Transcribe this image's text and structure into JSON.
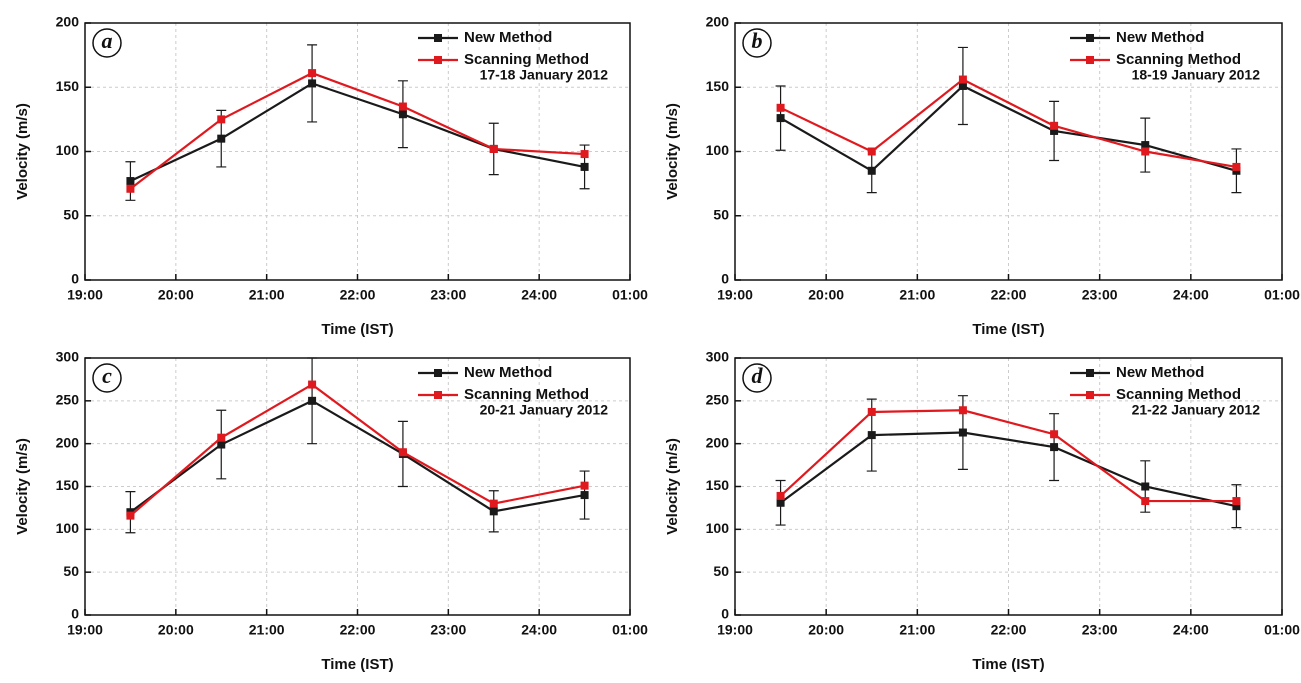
{
  "chart_data": [
    {
      "type": "line",
      "panel": "a",
      "annotation": "17-18 January 2012",
      "x_label": "Time (IST)",
      "y_label": "Velocity (m/s)",
      "x": [
        19.5,
        20.5,
        21.5,
        22.5,
        23.5,
        24.5
      ],
      "series": [
        {
          "name": "New Method",
          "color": "#1a1a1a",
          "values": [
            77,
            110,
            153,
            129,
            102,
            88
          ],
          "errors": [
            15,
            22,
            30,
            26,
            20,
            17
          ]
        },
        {
          "name": "Scanning Method",
          "color": "#e0191f",
          "values": [
            71,
            125,
            161,
            135,
            102,
            98
          ]
        }
      ],
      "xlim": [
        19,
        25
      ],
      "xticks": [
        {
          "value": 19,
          "label": "19:00"
        },
        {
          "value": 20,
          "label": "20:00"
        },
        {
          "value": 21,
          "label": "21:00"
        },
        {
          "value": 22,
          "label": "22:00"
        },
        {
          "value": 23,
          "label": "23:00"
        },
        {
          "value": 24,
          "label": "24:00"
        },
        {
          "value": 25,
          "label": "01:00"
        }
      ],
      "ylim": [
        0,
        200
      ],
      "yticks": [
        0,
        50,
        100,
        150,
        200
      ],
      "grid": true,
      "legend": "upper right"
    },
    {
      "type": "line",
      "panel": "b",
      "annotation": "18-19 January 2012",
      "x_label": "Time (IST)",
      "y_label": "Velocity (m/s)",
      "x": [
        19.5,
        20.5,
        21.5,
        22.5,
        23.5,
        24.5
      ],
      "series": [
        {
          "name": "New Method",
          "color": "#1a1a1a",
          "values": [
            126,
            85,
            151,
            116,
            105,
            85
          ],
          "errors": [
            25,
            17,
            30,
            23,
            21,
            17
          ]
        },
        {
          "name": "Scanning Method",
          "color": "#e0191f",
          "values": [
            134,
            100,
            156,
            120,
            100,
            88
          ]
        }
      ],
      "xlim": [
        19,
        25
      ],
      "xticks": [
        {
          "value": 19,
          "label": "19:00"
        },
        {
          "value": 20,
          "label": "20:00"
        },
        {
          "value": 21,
          "label": "21:00"
        },
        {
          "value": 22,
          "label": "22:00"
        },
        {
          "value": 23,
          "label": "23:00"
        },
        {
          "value": 24,
          "label": "24:00"
        },
        {
          "value": 25,
          "label": "01:00"
        }
      ],
      "ylim": [
        0,
        200
      ],
      "yticks": [
        0,
        50,
        100,
        150,
        200
      ],
      "grid": true,
      "legend": "upper right"
    },
    {
      "type": "line",
      "panel": "c",
      "annotation": "20-21 January 2012",
      "x_label": "Time (IST)",
      "y_label": "Velocity (m/s)",
      "x": [
        19.5,
        20.5,
        21.5,
        22.5,
        23.5,
        24.5
      ],
      "series": [
        {
          "name": "New Method",
          "color": "#1a1a1a",
          "values": [
            120,
            199,
            250,
            188,
            121,
            140
          ],
          "errors": [
            24,
            40,
            50,
            38,
            24,
            28
          ]
        },
        {
          "name": "Scanning Method",
          "color": "#e0191f",
          "values": [
            116,
            207,
            269,
            190,
            130,
            151
          ]
        }
      ],
      "xlim": [
        19,
        25
      ],
      "xticks": [
        {
          "value": 19,
          "label": "19:00"
        },
        {
          "value": 20,
          "label": "20:00"
        },
        {
          "value": 21,
          "label": "21:00"
        },
        {
          "value": 22,
          "label": "22:00"
        },
        {
          "value": 23,
          "label": "23:00"
        },
        {
          "value": 24,
          "label": "24:00"
        },
        {
          "value": 25,
          "label": "01:00"
        }
      ],
      "ylim": [
        0,
        300
      ],
      "yticks": [
        0,
        50,
        100,
        150,
        200,
        250,
        300
      ],
      "grid": true,
      "legend": "upper right"
    },
    {
      "type": "line",
      "panel": "d",
      "annotation": "21-22 January 2012",
      "x_label": "Time (IST)",
      "y_label": "Velocity (m/s)",
      "x": [
        19.5,
        20.5,
        21.5,
        22.5,
        23.5,
        24.5
      ],
      "series": [
        {
          "name": "New Method",
          "color": "#1a1a1a",
          "values": [
            131,
            210,
            213,
            196,
            150,
            127
          ],
          "errors": [
            26,
            42,
            43,
            39,
            30,
            25
          ]
        },
        {
          "name": "Scanning Method",
          "color": "#e0191f",
          "values": [
            139,
            237,
            239,
            211,
            133,
            133
          ]
        }
      ],
      "xlim": [
        19,
        25
      ],
      "xticks": [
        {
          "value": 19,
          "label": "19:00"
        },
        {
          "value": 20,
          "label": "20:00"
        },
        {
          "value": 21,
          "label": "21:00"
        },
        {
          "value": 22,
          "label": "22:00"
        },
        {
          "value": 23,
          "label": "23:00"
        },
        {
          "value": 24,
          "label": "24:00"
        },
        {
          "value": 25,
          "label": "01:00"
        }
      ],
      "ylim": [
        0,
        300
      ],
      "yticks": [
        0,
        50,
        100,
        150,
        200,
        250,
        300
      ],
      "grid": true,
      "legend": "upper right"
    }
  ]
}
